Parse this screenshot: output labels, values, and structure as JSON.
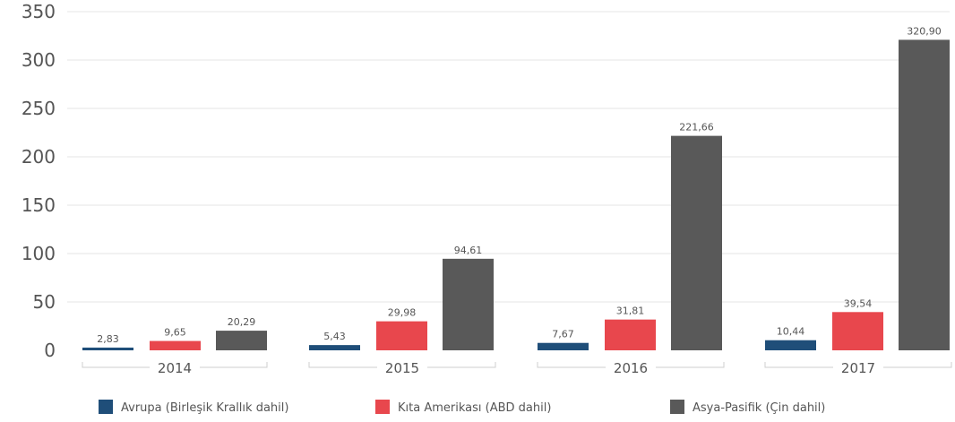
{
  "chart_data": {
    "type": "bar",
    "categories": [
      "2014",
      "2015",
      "2016",
      "2017"
    ],
    "series": [
      {
        "name": "Avrupa (Birleşik Krallık dahil)",
        "color": "#1f4e79",
        "values": [
          2.83,
          5.43,
          7.67,
          10.44
        ],
        "labels": [
          "2,83",
          "5,43",
          "7,67",
          "10,44"
        ]
      },
      {
        "name": "Kıta Amerikası (ABD dahil)",
        "color": "#e8474d",
        "values": [
          9.65,
          29.98,
          31.81,
          39.54
        ],
        "labels": [
          "9,65",
          "29,98",
          "31,81",
          "39,54"
        ]
      },
      {
        "name": "Asya-Pasifik (Çin dahil)",
        "color": "#595959",
        "values": [
          20.29,
          94.61,
          221.66,
          320.9
        ],
        "labels": [
          "20,29",
          "94,61",
          "221,66",
          "320,90"
        ]
      }
    ],
    "y_ticks": [
      0,
      50,
      100,
      150,
      200,
      250,
      300,
      350
    ],
    "ylim": [
      0,
      350
    ],
    "grid": true,
    "legend_position": "bottom",
    "title": "",
    "xlabel": "",
    "ylabel": ""
  }
}
